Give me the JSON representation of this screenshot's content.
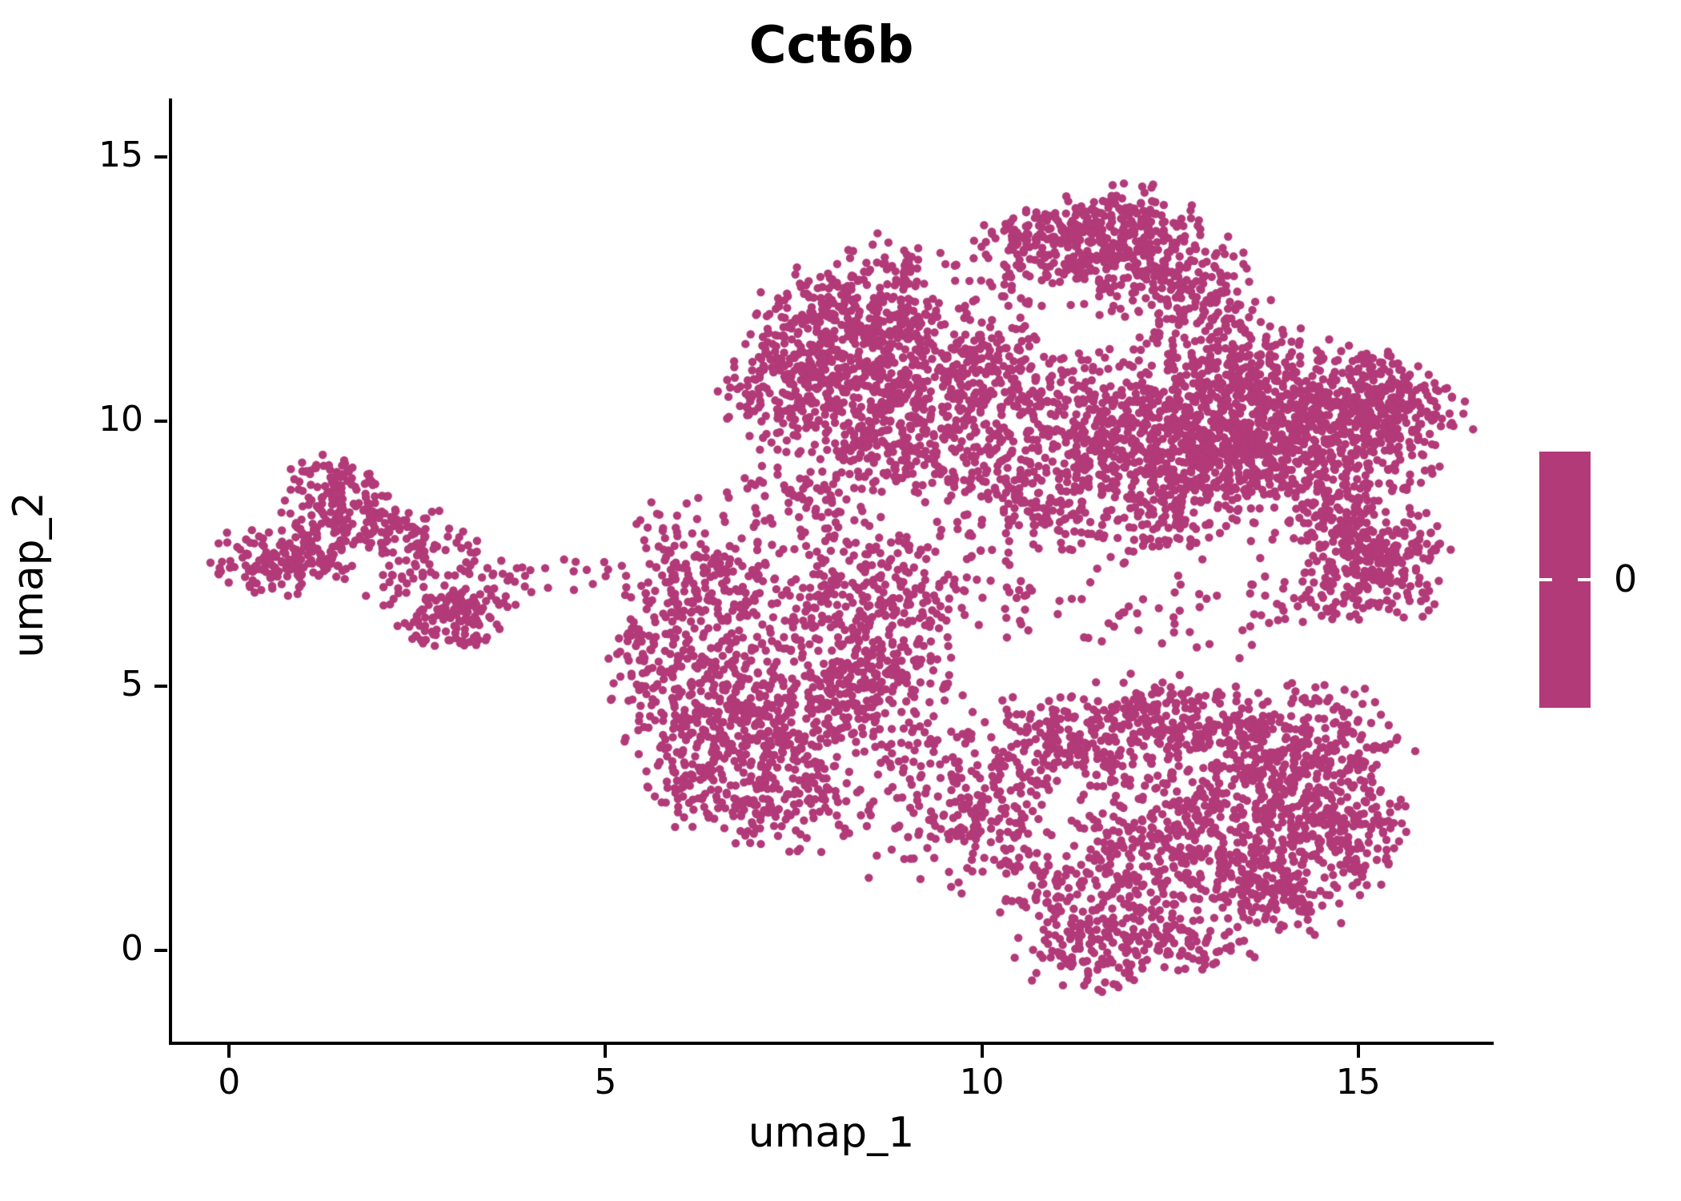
{
  "title": "Cct6b",
  "axes": {
    "xlabel": "umap_1",
    "ylabel": "umap_2",
    "x_tick_labels": [
      "0",
      "5",
      "10",
      "15"
    ],
    "y_tick_labels": [
      "0",
      "5",
      "10",
      "15"
    ]
  },
  "legend": {
    "tick_label": "0",
    "colorbar_color": "#b23a78"
  },
  "colors": {
    "point": "#b23a78",
    "axis": "#000000",
    "background": "#ffffff"
  },
  "chart_data": {
    "type": "scatter",
    "title": "Cct6b",
    "xlabel": "umap_1",
    "ylabel": "umap_2",
    "x_ticks": [
      0,
      5,
      10,
      15
    ],
    "y_ticks": [
      0,
      5,
      10,
      15
    ],
    "xlim": [
      -0.8,
      16.8
    ],
    "ylim": [
      -1.78,
      16.1
    ],
    "grid": false,
    "legend_position": "right-colorbar",
    "point_color": "#b23a78",
    "point_radius_px": 5.2,
    "expression_value_all_points": 0,
    "n_points_total_approx": 8460,
    "series": [
      {
        "name": "cells",
        "representation": "gaussian-mixture",
        "clusters": [
          {
            "name": "a-left-lobe",
            "cx": 0.75,
            "cy": 7.4,
            "sx": 0.5,
            "sy": 0.32,
            "rot": 0,
            "n": 170
          },
          {
            "name": "a-upper-lobe",
            "cx": 1.5,
            "cy": 8.35,
            "sx": 0.42,
            "sy": 0.42,
            "rot": 0,
            "n": 130
          },
          {
            "name": "a-tip",
            "cx": 1.35,
            "cy": 9.0,
            "sx": 0.25,
            "sy": 0.2,
            "rot": 0,
            "n": 25
          },
          {
            "name": "a-mid-band",
            "cx": 2.3,
            "cy": 7.9,
            "sx": 0.5,
            "sy": 0.3,
            "rot": -0.3,
            "n": 90
          },
          {
            "name": "a-mid2",
            "cx": 2.55,
            "cy": 7.15,
            "sx": 0.55,
            "sy": 0.35,
            "rot": 0,
            "n": 60
          },
          {
            "name": "a-lower-lobe",
            "cx": 3.0,
            "cy": 6.35,
            "sx": 0.38,
            "sy": 0.35,
            "rot": 0,
            "n": 120
          },
          {
            "name": "a-sparse-right",
            "cx": 3.9,
            "cy": 7.05,
            "sx": 0.4,
            "sy": 0.25,
            "rot": 0,
            "n": 14
          },
          {
            "name": "ab-gap-sparse",
            "cx": 4.75,
            "cy": 7.1,
            "sx": 0.3,
            "sy": 0.22,
            "rot": 0,
            "n": 9
          },
          {
            "name": "b-upper-left",
            "cx": 6.3,
            "cy": 6.9,
            "sx": 0.5,
            "sy": 0.65,
            "rot": 0,
            "n": 140
          },
          {
            "name": "b-left-band",
            "cx": 6.15,
            "cy": 5.0,
            "sx": 0.5,
            "sy": 0.8,
            "rot": 0,
            "n": 170
          },
          {
            "name": "b-core",
            "cx": 7.0,
            "cy": 4.1,
            "sx": 0.65,
            "sy": 0.85,
            "rot": 0,
            "n": 260
          },
          {
            "name": "b-core-right",
            "cx": 7.85,
            "cy": 5.6,
            "sx": 0.75,
            "sy": 0.85,
            "rot": 0,
            "n": 270
          },
          {
            "name": "b-bottom",
            "cx": 7.3,
            "cy": 2.9,
            "sx": 0.5,
            "sy": 0.55,
            "rot": 0,
            "n": 140
          },
          {
            "name": "b-right-band",
            "cx": 8.7,
            "cy": 4.7,
            "sx": 0.55,
            "sy": 0.75,
            "rot": 0,
            "n": 150
          },
          {
            "name": "b-upper-right",
            "cx": 8.6,
            "cy": 7.0,
            "sx": 0.65,
            "sy": 0.6,
            "rot": 0,
            "n": 160
          },
          {
            "name": "b-left-edge",
            "cx": 5.6,
            "cy": 5.9,
            "sx": 0.28,
            "sy": 0.8,
            "rot": 0,
            "n": 55
          },
          {
            "name": "b-bottom-left",
            "cx": 6.1,
            "cy": 3.3,
            "sx": 0.35,
            "sy": 0.5,
            "rot": 0,
            "n": 70
          },
          {
            "name": "b-top-bridge",
            "cx": 7.6,
            "cy": 8.5,
            "sx": 0.5,
            "sy": 0.45,
            "rot": 0,
            "n": 80
          },
          {
            "name": "b-sparse-topleft",
            "cx": 5.95,
            "cy": 7.8,
            "sx": 0.3,
            "sy": 0.45,
            "rot": 0,
            "n": 30
          },
          {
            "name": "c-top",
            "cx": 8.1,
            "cy": 11.9,
            "sx": 0.55,
            "sy": 0.55,
            "rot": 0.3,
            "n": 230
          },
          {
            "name": "c-band",
            "cx": 8.3,
            "cy": 10.45,
            "sx": 0.7,
            "sy": 0.5,
            "rot": 0,
            "n": 260
          },
          {
            "name": "c-left",
            "cx": 7.35,
            "cy": 10.7,
            "sx": 0.42,
            "sy": 0.65,
            "rot": 0,
            "n": 150
          },
          {
            "name": "c-right-diag",
            "cx": 9.2,
            "cy": 11.4,
            "sx": 0.45,
            "sy": 0.65,
            "rot": 0.35,
            "n": 150
          },
          {
            "name": "c-lower",
            "cx": 9.0,
            "cy": 9.45,
            "sx": 0.65,
            "sy": 0.45,
            "rot": 0,
            "n": 170
          },
          {
            "name": "c-right-edge",
            "cx": 9.85,
            "cy": 10.5,
            "sx": 0.4,
            "sy": 0.55,
            "rot": 0,
            "n": 80
          },
          {
            "name": "c-top-sparse",
            "cx": 8.7,
            "cy": 12.9,
            "sx": 0.45,
            "sy": 0.3,
            "rot": 0.3,
            "n": 55
          },
          {
            "name": "d-top-ridge",
            "cx": 11.8,
            "cy": 13.75,
            "sx": 0.55,
            "sy": 0.33,
            "rot": 0.15,
            "n": 160
          },
          {
            "name": "d-left",
            "cx": 11.25,
            "cy": 13.3,
            "sx": 0.45,
            "sy": 0.38,
            "rot": 0,
            "n": 110
          },
          {
            "name": "d-left-tip",
            "cx": 10.55,
            "cy": 13.35,
            "sx": 0.35,
            "sy": 0.3,
            "rot": 0,
            "n": 70
          },
          {
            "name": "d-diag",
            "cx": 12.45,
            "cy": 12.9,
            "sx": 0.48,
            "sy": 0.45,
            "rot": 0.6,
            "n": 130
          },
          {
            "name": "d-lower-right",
            "cx": 13.0,
            "cy": 12.1,
            "sx": 0.42,
            "sy": 0.5,
            "rot": 0.5,
            "n": 110
          },
          {
            "name": "d-mid-sparse",
            "cx": 11.7,
            "cy": 12.5,
            "sx": 0.55,
            "sy": 0.4,
            "rot": 0,
            "n": 45
          },
          {
            "name": "cd-gap-sparse",
            "cx": 10.3,
            "cy": 12.3,
            "sx": 0.4,
            "sy": 0.45,
            "rot": 0,
            "n": 35
          },
          {
            "name": "e-main",
            "cx": 14.2,
            "cy": 9.8,
            "sx": 1.05,
            "sy": 0.7,
            "rot": 0.1,
            "n": 780
          },
          {
            "name": "e-mid",
            "cx": 12.6,
            "cy": 9.35,
            "sx": 0.75,
            "sy": 0.75,
            "rot": 0,
            "n": 400
          },
          {
            "name": "e-band",
            "cx": 11.35,
            "cy": 9.9,
            "sx": 0.75,
            "sy": 0.65,
            "rot": 0,
            "n": 270
          },
          {
            "name": "e-left",
            "cx": 10.45,
            "cy": 8.65,
            "sx": 0.55,
            "sy": 0.55,
            "rot": 0,
            "n": 130
          },
          {
            "name": "e-top-band",
            "cx": 13.4,
            "cy": 10.95,
            "sx": 0.85,
            "sy": 0.42,
            "rot": 0,
            "n": 220
          },
          {
            "name": "e-right-edge",
            "cx": 15.35,
            "cy": 10.3,
            "sx": 0.42,
            "sy": 0.48,
            "rot": 0,
            "n": 150
          },
          {
            "name": "e-c-gap",
            "cx": 10.3,
            "cy": 10.95,
            "sx": 0.45,
            "sy": 0.45,
            "rot": 0,
            "n": 80
          },
          {
            "name": "e-bottom",
            "cx": 12.1,
            "cy": 8.05,
            "sx": 0.75,
            "sy": 0.4,
            "rot": 0,
            "n": 120
          },
          {
            "name": "f-main",
            "cx": 15.25,
            "cy": 7.5,
            "sx": 0.48,
            "sy": 0.5,
            "rot": 0,
            "n": 210
          },
          {
            "name": "f-upper",
            "cx": 14.6,
            "cy": 8.2,
            "sx": 0.4,
            "sy": 0.38,
            "rot": 0,
            "n": 80
          },
          {
            "name": "f-lower-sparse",
            "cx": 15.0,
            "cy": 6.6,
            "sx": 0.5,
            "sy": 0.3,
            "rot": 0,
            "n": 45
          },
          {
            "name": "ef-gap-sparse",
            "cx": 14.4,
            "cy": 6.9,
            "sx": 0.6,
            "sy": 0.35,
            "rot": 0,
            "n": 35
          },
          {
            "name": "eg-gap-sparse",
            "cx": 12.5,
            "cy": 6.4,
            "sx": 1.1,
            "sy": 0.45,
            "rot": 0,
            "n": 55
          },
          {
            "name": "eb-gap-sparse",
            "cx": 9.9,
            "cy": 6.8,
            "sx": 0.5,
            "sy": 0.55,
            "rot": 0,
            "n": 40
          },
          {
            "name": "g-main",
            "cx": 13.3,
            "cy": 2.6,
            "sx": 0.95,
            "sy": 0.85,
            "rot": 0,
            "n": 500
          },
          {
            "name": "g-upper-right",
            "cx": 14.35,
            "cy": 3.9,
            "sx": 0.65,
            "sy": 0.55,
            "rot": 0,
            "n": 250
          },
          {
            "name": "g-top-band",
            "cx": 12.3,
            "cy": 4.3,
            "sx": 0.75,
            "sy": 0.5,
            "rot": 0,
            "n": 210
          },
          {
            "name": "g-left-arm",
            "cx": 10.1,
            "cy": 2.6,
            "sx": 0.42,
            "sy": 0.75,
            "rot": 0,
            "n": 150
          },
          {
            "name": "g-upper-left",
            "cx": 11.0,
            "cy": 3.95,
            "sx": 0.55,
            "sy": 0.45,
            "rot": 0,
            "n": 140
          },
          {
            "name": "g-lower-mid",
            "cx": 12.0,
            "cy": 1.45,
            "sx": 0.65,
            "sy": 0.55,
            "rot": 0,
            "n": 170
          },
          {
            "name": "g-bottom-tip",
            "cx": 11.5,
            "cy": 0.1,
            "sx": 0.5,
            "sy": 0.48,
            "rot": 0,
            "n": 140
          },
          {
            "name": "g-lower-right",
            "cx": 13.9,
            "cy": 1.2,
            "sx": 0.55,
            "sy": 0.45,
            "rot": 0,
            "n": 150
          },
          {
            "name": "g-right-edge",
            "cx": 14.9,
            "cy": 2.2,
            "sx": 0.45,
            "sy": 0.55,
            "rot": 0,
            "n": 120
          },
          {
            "name": "g-hole-edge",
            "cx": 10.75,
            "cy": 1.3,
            "sx": 0.35,
            "sy": 0.45,
            "rot": 0,
            "n": 40
          },
          {
            "name": "g-bottom-band",
            "cx": 12.7,
            "cy": 0.2,
            "sx": 0.5,
            "sy": 0.32,
            "rot": 0,
            "n": 80
          },
          {
            "name": "bg-bridge",
            "cx": 9.0,
            "cy": 2.4,
            "sx": 0.45,
            "sy": 0.6,
            "rot": 0,
            "n": 40
          },
          {
            "name": "bg-bridge2",
            "cx": 9.4,
            "cy": 3.4,
            "sx": 0.4,
            "sy": 0.5,
            "rot": 0,
            "n": 30
          }
        ]
      }
    ]
  }
}
